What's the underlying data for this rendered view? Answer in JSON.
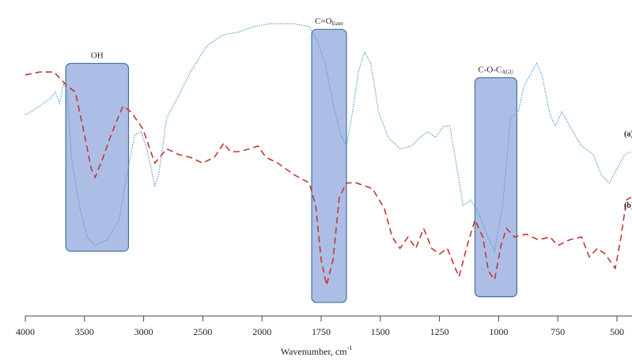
{
  "chart_data": {
    "type": "line",
    "x_label": {
      "text": "Wavenumber, cm",
      "superscript": "-1"
    },
    "xlim": [
      4000,
      440
    ],
    "xticks": [
      4000,
      3500,
      3000,
      2500,
      2000,
      1750,
      1500,
      1250,
      1000,
      750,
      500
    ],
    "x_ticks_evenly_spaced": true,
    "ylim": [
      0,
      100
    ],
    "series": [
      {
        "name": "(a)",
        "color": "#5b9bd5",
        "style": "dotted",
        "x": [
          4000,
          3913,
          3846,
          3779,
          3745,
          3711,
          3678,
          3644,
          3611,
          3544,
          3477,
          3409,
          3309,
          3208,
          3141,
          3074,
          3020,
          2973,
          2906,
          2872,
          2805,
          2738,
          2604,
          2470,
          2336,
          2201,
          2067,
          1967,
          1867,
          1800,
          1767,
          1733,
          1700,
          1667,
          1643,
          1617,
          1593,
          1567,
          1540,
          1507,
          1467,
          1417,
          1367,
          1333,
          1300,
          1267,
          1233,
          1207,
          1183,
          1150,
          1117,
          1083,
          1050,
          1017,
          983,
          950,
          917,
          893,
          867,
          840,
          817,
          783,
          760,
          733,
          700,
          650,
          600,
          567,
          533,
          500,
          467,
          440
        ],
        "values": [
          68,
          70,
          72,
          74,
          76,
          72,
          79,
          76,
          53,
          36,
          25,
          22,
          24,
          31,
          47,
          61,
          62,
          56,
          43,
          47,
          67,
          72,
          83,
          92,
          96,
          97,
          99,
          100,
          100,
          99,
          94,
          86,
          72,
          61,
          57,
          69,
          83,
          90,
          86,
          69,
          60,
          56,
          57,
          60,
          62,
          60,
          64,
          64,
          53,
          36,
          38,
          33,
          26,
          20,
          36,
          67,
          69,
          78,
          82,
          86,
          82,
          68,
          64,
          69,
          64,
          57,
          54,
          47,
          44,
          49,
          54,
          55
        ]
      },
      {
        "name": "(b)",
        "color": "#c0392b",
        "style": "dashed",
        "x": [
          4000,
          3879,
          3758,
          3711,
          3644,
          3577,
          3510,
          3443,
          3409,
          3342,
          3275,
          3175,
          3107,
          3007,
          2906,
          2805,
          2705,
          2604,
          2503,
          2403,
          2322,
          2268,
          2201,
          2101,
          2034,
          1983,
          1933,
          1867,
          1800,
          1773,
          1750,
          1727,
          1700,
          1673,
          1643,
          1600,
          1533,
          1483,
          1450,
          1417,
          1383,
          1350,
          1317,
          1283,
          1250,
          1217,
          1183,
          1167,
          1133,
          1100,
          1067,
          1043,
          1017,
          990,
          967,
          933,
          883,
          833,
          783,
          750,
          700,
          650,
          617,
          583,
          550,
          533,
          507,
          483,
          460,
          440
        ],
        "values": [
          82,
          83,
          83,
          81,
          78,
          76,
          63,
          49,
          46,
          53,
          61,
          71,
          69,
          63,
          51,
          56,
          54,
          53,
          51,
          53,
          58,
          55,
          55,
          56,
          57,
          53,
          51,
          47,
          44,
          36,
          17,
          8,
          17,
          39,
          44,
          44,
          42,
          35,
          25,
          21,
          25,
          21,
          28,
          21,
          19,
          21,
          14,
          11,
          22,
          31,
          25,
          13,
          10,
          22,
          28,
          25,
          26,
          24,
          25,
          22,
          24,
          25,
          18,
          21,
          19,
          17,
          14,
          25,
          38,
          39
        ]
      }
    ],
    "bands": [
      {
        "label": "OH",
        "x": [
          3658,
          3128
        ],
        "y": [
          86,
          20
        ]
      },
      {
        "label": "C=O",
        "subscript": "Ester",
        "x": [
          1790,
          1643
        ],
        "y": [
          98,
          2
        ]
      },
      {
        "label": "C-O-C",
        "subscript": "AGU",
        "x": [
          1100,
          923
        ],
        "y": [
          81,
          4
        ]
      }
    ]
  }
}
